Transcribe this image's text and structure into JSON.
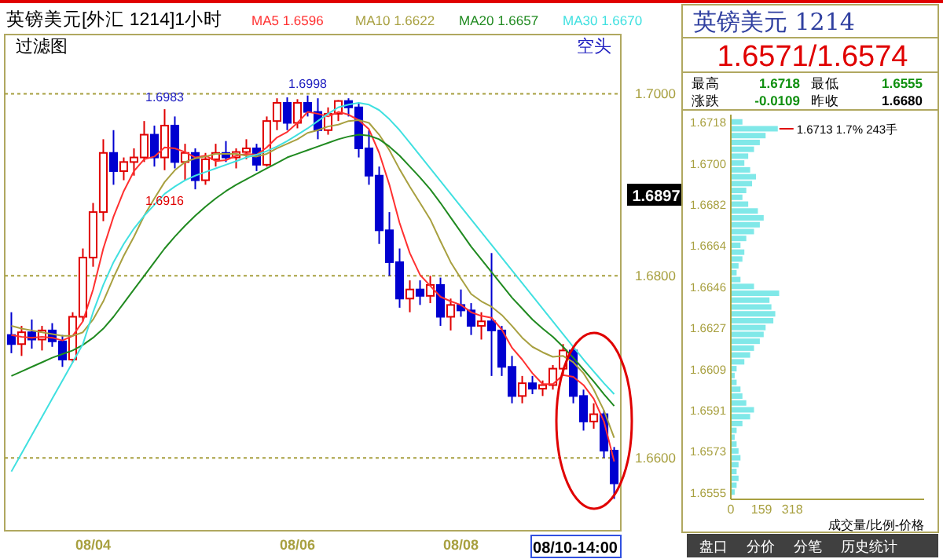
{
  "chart_data": [
    {
      "type": "candlestick",
      "title": "英镑美元[外汇 1214]1小时",
      "categories": [
        null,
        null,
        null,
        null,
        null,
        null,
        null,
        null,
        "08/04",
        null,
        null,
        null,
        null,
        null,
        null,
        null,
        null,
        null,
        null,
        null,
        null,
        null,
        null,
        null,
        null,
        null,
        null,
        null,
        "08/06",
        null,
        null,
        null,
        null,
        null,
        null,
        null,
        null,
        null,
        null,
        null,
        null,
        null,
        null,
        null,
        "08/08",
        null,
        null,
        null,
        null,
        null,
        null,
        null,
        null,
        null,
        null,
        null,
        null,
        null,
        null,
        null
      ],
      "ohlc": [
        [
          1.6735,
          1.676,
          1.6715,
          1.6725
        ],
        [
          1.6725,
          1.6745,
          1.6712,
          1.6738
        ],
        [
          1.6738,
          1.6752,
          1.672,
          1.673
        ],
        [
          1.673,
          1.6745,
          1.6718,
          1.674
        ],
        [
          1.674,
          1.6748,
          1.6722,
          1.6728
        ],
        [
          1.6728,
          1.6735,
          1.67,
          1.6708
        ],
        [
          1.6708,
          1.676,
          1.6705,
          1.6755
        ],
        [
          1.6755,
          1.683,
          1.675,
          1.682
        ],
        [
          1.682,
          1.688,
          1.681,
          1.687
        ],
        [
          1.687,
          1.695,
          1.686,
          1.6935
        ],
        [
          1.6935,
          1.696,
          1.69,
          1.6915
        ],
        [
          1.6915,
          1.693,
          1.6905,
          1.6925
        ],
        [
          1.6925,
          1.694,
          1.691,
          1.693
        ],
        [
          1.693,
          1.697,
          1.6925,
          1.6955
        ],
        [
          1.6955,
          1.6965,
          1.692,
          1.693
        ],
        [
          1.693,
          1.6983,
          1.6916,
          1.6965
        ],
        [
          1.6965,
          1.6975,
          1.6918,
          1.6925
        ],
        [
          1.6925,
          1.6945,
          1.6905,
          1.6935
        ],
        [
          1.6935,
          1.694,
          1.6895,
          1.6905
        ],
        [
          1.6905,
          1.6935,
          1.69,
          1.6928
        ],
        [
          1.6928,
          1.6945,
          1.692,
          1.6935
        ],
        [
          1.6935,
          1.6948,
          1.6925,
          1.693
        ],
        [
          1.693,
          1.694,
          1.6918,
          1.6936
        ],
        [
          1.6936,
          1.695,
          1.6928,
          1.694
        ],
        [
          1.694,
          1.6945,
          1.6915,
          1.6922
        ],
        [
          1.6922,
          1.6975,
          1.692,
          1.697
        ],
        [
          1.697,
          1.6995,
          1.696,
          1.699
        ],
        [
          1.699,
          1.6996,
          1.696,
          1.6968
        ],
        [
          1.6968,
          1.6994,
          1.6962,
          1.699
        ],
        [
          1.699,
          1.6998,
          1.6975,
          1.698
        ],
        [
          1.698,
          1.6995,
          1.695,
          1.696
        ],
        [
          1.696,
          1.6985,
          1.6955,
          1.6978
        ],
        [
          1.6978,
          1.6993,
          1.697,
          1.6992
        ],
        [
          1.6992,
          1.6995,
          1.6975,
          1.6985
        ],
        [
          1.6985,
          1.699,
          1.693,
          1.694
        ],
        [
          1.694,
          1.696,
          1.69,
          1.691
        ],
        [
          1.691,
          1.692,
          1.6835,
          1.685
        ],
        [
          1.685,
          1.687,
          1.68,
          1.6815
        ],
        [
          1.6815,
          1.683,
          1.6765,
          1.6775
        ],
        [
          1.6775,
          1.6795,
          1.676,
          1.6785
        ],
        [
          1.6785,
          1.6795,
          1.6768,
          1.6778
        ],
        [
          1.6778,
          1.68,
          1.677,
          1.679
        ],
        [
          1.679,
          1.6798,
          1.6745,
          1.6755
        ],
        [
          1.6755,
          1.6775,
          1.674,
          1.6768
        ],
        [
          1.6768,
          1.6785,
          1.6755,
          1.6762
        ],
        [
          1.6762,
          1.677,
          1.6735,
          1.6745
        ],
        [
          1.6745,
          1.676,
          1.673,
          1.675
        ],
        [
          1.675,
          1.6825,
          1.669,
          1.674
        ],
        [
          1.674,
          1.6745,
          1.669,
          1.67
        ],
        [
          1.67,
          1.6712,
          1.666,
          1.6668
        ],
        [
          1.6668,
          1.669,
          1.666,
          1.6682
        ],
        [
          1.6682,
          1.669,
          1.667,
          1.6676
        ],
        [
          1.6676,
          1.6685,
          1.6668,
          1.668
        ],
        [
          1.668,
          1.6702,
          1.6675,
          1.6698
        ],
        [
          1.6698,
          1.6725,
          1.669,
          1.6718
        ],
        [
          1.6718,
          1.6722,
          1.666,
          1.6668
        ],
        [
          1.6668,
          1.6675,
          1.663,
          1.664
        ],
        [
          1.664,
          1.666,
          1.6632,
          1.6648
        ],
        [
          1.6648,
          1.6652,
          1.66,
          1.6608
        ],
        [
          1.6608,
          1.6612,
          1.6555,
          1.6572
        ]
      ],
      "colors": [
        "#0000d0",
        "#e00000",
        "#0000d0",
        "#e00000",
        "#0000d0",
        "#0000d0",
        "#e00000",
        "#e00000",
        "#e00000",
        "#e00000",
        "#0000d0",
        "#e00000",
        "#e00000",
        "#e00000",
        "#0000d0",
        "#e00000",
        "#0000d0",
        "#e00000",
        "#0000d0",
        "#e00000",
        "#e00000",
        "#0000d0",
        "#e00000",
        "#e00000",
        "#0000d0",
        "#e00000",
        "#e00000",
        "#0000d0",
        "#e00000",
        "#0000d0",
        "#0000d0",
        "#e00000",
        "#e00000",
        "#0000d0",
        "#0000d0",
        "#0000d0",
        "#0000d0",
        "#0000d0",
        "#0000d0",
        "#e00000",
        "#0000d0",
        "#e00000",
        "#0000d0",
        "#e00000",
        "#0000d0",
        "#0000d0",
        "#e00000",
        "#0000d0",
        "#0000d0",
        "#0000d0",
        "#e00000",
        "#0000d0",
        "#e00000",
        "#e00000",
        "#e00000",
        "#0000d0",
        "#0000d0",
        "#e00000",
        "#0000d0",
        "#0000d0"
      ],
      "series": [
        {
          "name": "MA5 1.6596",
          "type": "line",
          "color": "#ff3030",
          "values": [
            1.6735,
            1.6733,
            1.6732,
            1.6733,
            1.6732,
            1.6729,
            1.6734,
            1.675,
            1.6785,
            1.683,
            1.6865,
            1.6893,
            1.6915,
            1.6928,
            1.6931,
            1.6941,
            1.694,
            1.6936,
            1.693,
            1.6932,
            1.6926,
            1.6927,
            1.6932,
            1.6934,
            1.6933,
            1.6941,
            1.6952,
            1.6958,
            1.6968,
            1.698,
            1.6978,
            1.6975,
            1.698,
            1.6977,
            1.6971,
            1.6961,
            1.6935,
            1.69,
            1.6858,
            1.6825,
            1.6801,
            1.6789,
            1.6777,
            1.6772,
            1.6768,
            1.676,
            1.6756,
            1.6754,
            1.6741,
            1.6721,
            1.6708,
            1.6693,
            1.6681,
            1.6681,
            1.6691,
            1.6689,
            1.668,
            1.6665,
            1.664,
            1.6596
          ]
        },
        {
          "name": "MA10 1.6622",
          "type": "line",
          "color": "#a8a040",
          "values": [
            1.6745,
            1.6742,
            1.674,
            1.6738,
            1.6736,
            1.6734,
            1.6734,
            1.6738,
            1.6752,
            1.6772,
            1.6798,
            1.6822,
            1.6843,
            1.6866,
            1.6885,
            1.6903,
            1.6916,
            1.6925,
            1.6929,
            1.6931,
            1.6934,
            1.6934,
            1.6934,
            1.6932,
            1.6931,
            1.6934,
            1.694,
            1.6945,
            1.695,
            1.6957,
            1.696,
            1.6964,
            1.6966,
            1.697,
            1.6971,
            1.6968,
            1.6955,
            1.6938,
            1.6917,
            1.6898,
            1.688,
            1.6862,
            1.6838,
            1.6815,
            1.6797,
            1.678,
            1.6772,
            1.6766,
            1.6757,
            1.6745,
            1.6732,
            1.6722,
            1.6716,
            1.6711,
            1.6712,
            1.6705,
            1.6693,
            1.6675,
            1.6652,
            1.6622
          ]
        },
        {
          "name": "MA20 1.6657",
          "type": "line",
          "color": "#208a20",
          "values": [
            1.669,
            1.6695,
            1.67,
            1.6705,
            1.671,
            1.6714,
            1.6718,
            1.6724,
            1.6732,
            1.6742,
            1.6755,
            1.677,
            1.6785,
            1.68,
            1.6815,
            1.683,
            1.6843,
            1.6855,
            1.6866,
            1.6876,
            1.6885,
            1.6893,
            1.69,
            1.6906,
            1.6912,
            1.6918,
            1.6924,
            1.693,
            1.6934,
            1.6938,
            1.6942,
            1.6946,
            1.695,
            1.6953,
            1.6955,
            1.6954,
            1.695,
            1.6942,
            1.6932,
            1.692,
            1.6908,
            1.6895,
            1.688,
            1.6864,
            1.6848,
            1.6832,
            1.6818,
            1.6804,
            1.679,
            1.6776,
            1.6764,
            1.6752,
            1.6742,
            1.6733,
            1.6722,
            1.671,
            1.6697,
            1.6684,
            1.667,
            1.6657
          ]
        },
        {
          "name": "MA30 1.6670",
          "type": "line",
          "color": "#40e0e0",
          "values": [
            1.6585,
            1.6605,
            1.6625,
            1.6645,
            1.6665,
            1.6685,
            1.6705,
            1.6725,
            1.676,
            1.679,
            1.6815,
            1.6835,
            1.6852,
            1.6866,
            1.6878,
            1.689,
            1.6898,
            1.6905,
            1.691,
            1.6914,
            1.6918,
            1.6922,
            1.6926,
            1.693,
            1.6933,
            1.6937,
            1.6942,
            1.6948,
            1.6955,
            1.6962,
            1.697,
            1.6978,
            1.6985,
            1.6988,
            1.699,
            1.6988,
            1.6982,
            1.6972,
            1.696,
            1.6946,
            1.6932,
            1.6918,
            1.6904,
            1.689,
            1.6876,
            1.6862,
            1.6848,
            1.6834,
            1.682,
            1.6806,
            1.6792,
            1.6778,
            1.6764,
            1.675,
            1.6736,
            1.6722,
            1.6708,
            1.6695,
            1.6682,
            1.667
          ]
        }
      ],
      "ylim": [
        1.652,
        1.7065
      ],
      "yticks": [
        {
          "value": 1.66,
          "label": "1.6600"
        },
        {
          "value": 1.68,
          "label": "1.6800"
        },
        {
          "value": 1.7,
          "label": "1.7000"
        }
      ],
      "grid": "y",
      "legend": "top",
      "annotations": [
        "过滤图",
        "空头",
        {
          "text": "1.6983",
          "y": 1.6983
        },
        {
          "text": "1.6998",
          "y": 1.6998
        },
        {
          "text": "1.6916",
          "y": 1.6916
        },
        "1.6897",
        "08/10-14:00"
      ]
    },
    {
      "type": "bar",
      "orientation": "horizontal",
      "title": "英镑美元  1214",
      "subtitle": "1.6571/1.6574",
      "xlabel": "成交量/比例-价格",
      "categories": [
        "1.6718",
        null,
        null,
        null,
        null,
        null,
        "1.6700",
        null,
        null,
        null,
        null,
        null,
        "1.6682",
        null,
        null,
        null,
        null,
        null,
        "1.6664",
        null,
        null,
        null,
        null,
        null,
        "1.6646",
        null,
        null,
        null,
        null,
        null,
        "1.6627",
        null,
        null,
        null,
        null,
        null,
        "1.6609",
        null,
        null,
        null,
        null,
        null,
        "1.6591",
        null,
        null,
        null,
        null,
        null,
        "1.6573",
        null,
        null,
        null,
        null,
        null,
        "1.6555"
      ],
      "values": [
        60,
        243,
        180,
        150,
        120,
        90,
        70,
        100,
        130,
        110,
        80,
        60,
        90,
        140,
        170,
        150,
        120,
        80,
        50,
        70,
        60,
        40,
        30,
        50,
        120,
        250,
        200,
        210,
        230,
        220,
        180,
        170,
        150,
        120,
        100,
        70,
        30,
        20,
        30,
        50,
        60,
        80,
        120,
        100,
        60,
        30,
        20,
        30,
        40,
        50,
        40,
        30,
        40,
        30,
        20
      ],
      "color": "#80e8e8",
      "xlim": [
        0,
        1000
      ],
      "xticks": [
        0,
        159,
        318
      ],
      "annotations": [
        "最高",
        "1.6718",
        "最低",
        "1.6555",
        "涨跌",
        "-0.0109",
        "昨收",
        "1.6680",
        "1.6713 1.7% 243手",
        "盘口",
        "分价",
        "分笔",
        "历史统计"
      ]
    }
  ]
}
